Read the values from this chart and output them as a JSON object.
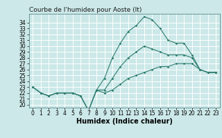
{
  "title": "Courbe de l'humidex pour Aoste (It)",
  "xlabel": "Humidex (Indice chaleur)",
  "bg_color": "#cce8e8",
  "grid_color": "#ffffff",
  "line_color": "#2e7d6e",
  "x": [
    0,
    1,
    2,
    3,
    4,
    5,
    6,
    7,
    8,
    9,
    10,
    11,
    12,
    13,
    14,
    15,
    16,
    17,
    18,
    19,
    20,
    21,
    22,
    23
  ],
  "y_max": [
    23.0,
    22.0,
    21.5,
    22.0,
    22.0,
    22.0,
    21.5,
    19.0,
    22.5,
    24.5,
    28.0,
    30.5,
    32.5,
    33.5,
    35.0,
    34.5,
    33.0,
    31.0,
    30.5,
    30.5,
    28.5,
    26.0,
    25.5,
    25.5
  ],
  "y_mid": [
    23.0,
    22.0,
    21.5,
    22.0,
    22.0,
    22.0,
    21.5,
    19.0,
    22.5,
    22.5,
    24.5,
    26.5,
    28.0,
    29.0,
    30.0,
    29.5,
    29.0,
    28.5,
    28.5,
    28.5,
    28.0,
    26.0,
    25.5,
    25.5
  ],
  "y_min": [
    23.0,
    22.0,
    21.5,
    22.0,
    22.0,
    22.0,
    21.5,
    19.0,
    22.5,
    22.0,
    22.5,
    23.5,
    24.5,
    25.0,
    25.5,
    26.0,
    26.5,
    26.5,
    27.0,
    27.0,
    27.0,
    26.0,
    25.5,
    25.5
  ],
  "ylim": [
    19.5,
    35.5
  ],
  "xlim": [
    -0.5,
    23.5
  ],
  "yticks": [
    20,
    21,
    22,
    23,
    24,
    25,
    26,
    27,
    28,
    29,
    30,
    31,
    32,
    33,
    34
  ],
  "xticks": [
    0,
    1,
    2,
    3,
    4,
    5,
    6,
    7,
    8,
    9,
    10,
    11,
    12,
    13,
    14,
    15,
    16,
    17,
    18,
    19,
    20,
    21,
    22,
    23
  ],
  "title_fontsize": 6.5,
  "tick_fontsize": 5.5,
  "xlabel_fontsize": 7
}
